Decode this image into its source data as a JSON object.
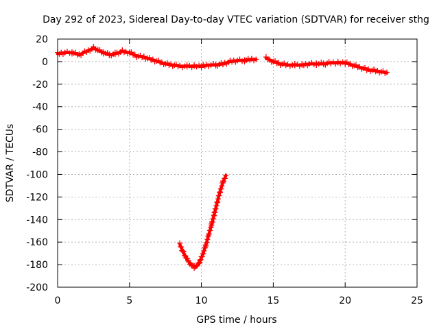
{
  "chart_data": {
    "type": "scatter",
    "title": "Day 292 of 2023, Sidereal Day-to-day VTEC variation (SDTVAR) for receiver sthg",
    "xlabel": "GPS time / hours",
    "ylabel": "SDTVAR / TECUs",
    "xlim": [
      0,
      25
    ],
    "ylim": [
      -200,
      20
    ],
    "xticks": [
      0,
      5,
      10,
      15,
      20,
      25
    ],
    "xtick_labels": [
      "0",
      "5",
      "10",
      "15",
      "20",
      "25"
    ],
    "yticks": [
      20,
      0,
      -20,
      -40,
      -60,
      -80,
      -100,
      -120,
      -140,
      -160,
      -180,
      -200
    ],
    "ytick_labels": [
      "20",
      "0",
      "-20",
      "-40",
      "-60",
      "-80",
      "-100",
      "-120",
      "-140",
      "-160",
      "-180",
      "-200"
    ],
    "grid": true,
    "marker": "+",
    "series": [
      {
        "name": "SDTVAR",
        "color": "#ff0000",
        "segments": [
          {
            "x": [
              0.0,
              0.5,
              1.0,
              1.5,
              2.0,
              2.5,
              2.8,
              3.2,
              3.6,
              4.0,
              4.5,
              5.0,
              5.5,
              6.0,
              6.5,
              7.0,
              7.5,
              8.0,
              8.5,
              9.0,
              9.5,
              10.0,
              10.5,
              11.0,
              11.5,
              12.0,
              12.5,
              13.0,
              13.5,
              13.8
            ],
            "y": [
              7,
              8,
              8,
              6,
              9,
              12,
              10,
              8,
              6,
              7,
              9,
              8,
              5,
              4,
              2,
              0,
              -2,
              -3,
              -4,
              -4,
              -4,
              -4,
              -3,
              -3,
              -2,
              0,
              1,
              1,
              2,
              2
            ]
          },
          {
            "x": [
              14.5,
              15.0,
              15.5,
              16.0,
              16.5,
              17.0,
              17.5,
              18.0,
              18.5,
              19.0,
              19.5,
              20.0,
              20.5,
              21.0,
              21.5,
              22.0,
              22.5,
              22.9
            ],
            "y": [
              3,
              0,
              -2,
              -3,
              -3,
              -3,
              -2,
              -2,
              -2,
              -1,
              -1,
              -1,
              -3,
              -5,
              -7,
              -8,
              -9,
              -10
            ]
          },
          {
            "x": [
              8.5,
              8.7,
              8.9,
              9.1,
              9.3,
              9.5,
              9.7,
              9.9,
              10.1,
              10.3,
              10.5,
              10.7,
              10.9,
              11.1,
              11.3,
              11.5,
              11.7
            ],
            "y": [
              -162,
              -168,
              -173,
              -177,
              -180,
              -182,
              -181,
              -177,
              -171,
              -163,
              -154,
              -145,
              -135,
              -125,
              -115,
              -107,
              -101
            ]
          }
        ]
      }
    ]
  }
}
